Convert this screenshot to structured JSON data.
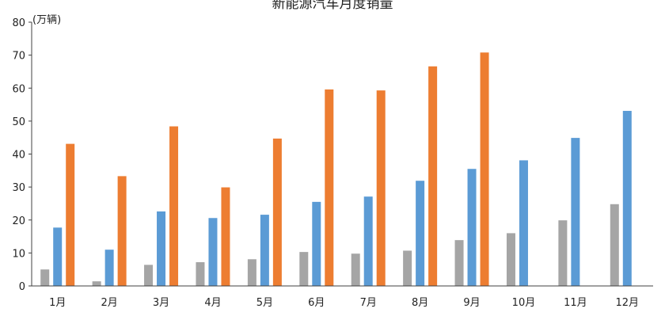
{
  "chart_data": {
    "type": "bar",
    "title": "新能源汽车月度销量",
    "ylabel": "(万辆)",
    "xlabel": "",
    "ylim": [
      0,
      80
    ],
    "yticks": [
      "0",
      "10",
      "20",
      "30",
      "40",
      "50",
      "60",
      "70",
      "80"
    ],
    "categories": [
      "1月",
      "2月",
      "3月",
      "4月",
      "5月",
      "6月",
      "7月",
      "8月",
      "9月",
      "10月",
      "11月",
      "12月"
    ],
    "series": [
      {
        "color": "#a5a5a5",
        "values": [
          5.0,
          1.4,
          6.4,
          7.2,
          8.1,
          10.3,
          9.8,
          10.7,
          13.9,
          16.0,
          19.9,
          24.8
        ]
      },
      {
        "color": "#5b9bd5",
        "values": [
          17.7,
          11.0,
          22.6,
          20.6,
          21.6,
          25.5,
          27.1,
          31.9,
          35.5,
          38.1,
          44.9,
          53.1
        ]
      },
      {
        "color": "#ed7d31",
        "values": [
          43.1,
          33.3,
          48.4,
          29.9,
          44.7,
          59.6,
          59.3,
          66.6,
          70.8,
          null,
          null,
          null
        ]
      }
    ],
    "grid": false,
    "legend": "none"
  }
}
